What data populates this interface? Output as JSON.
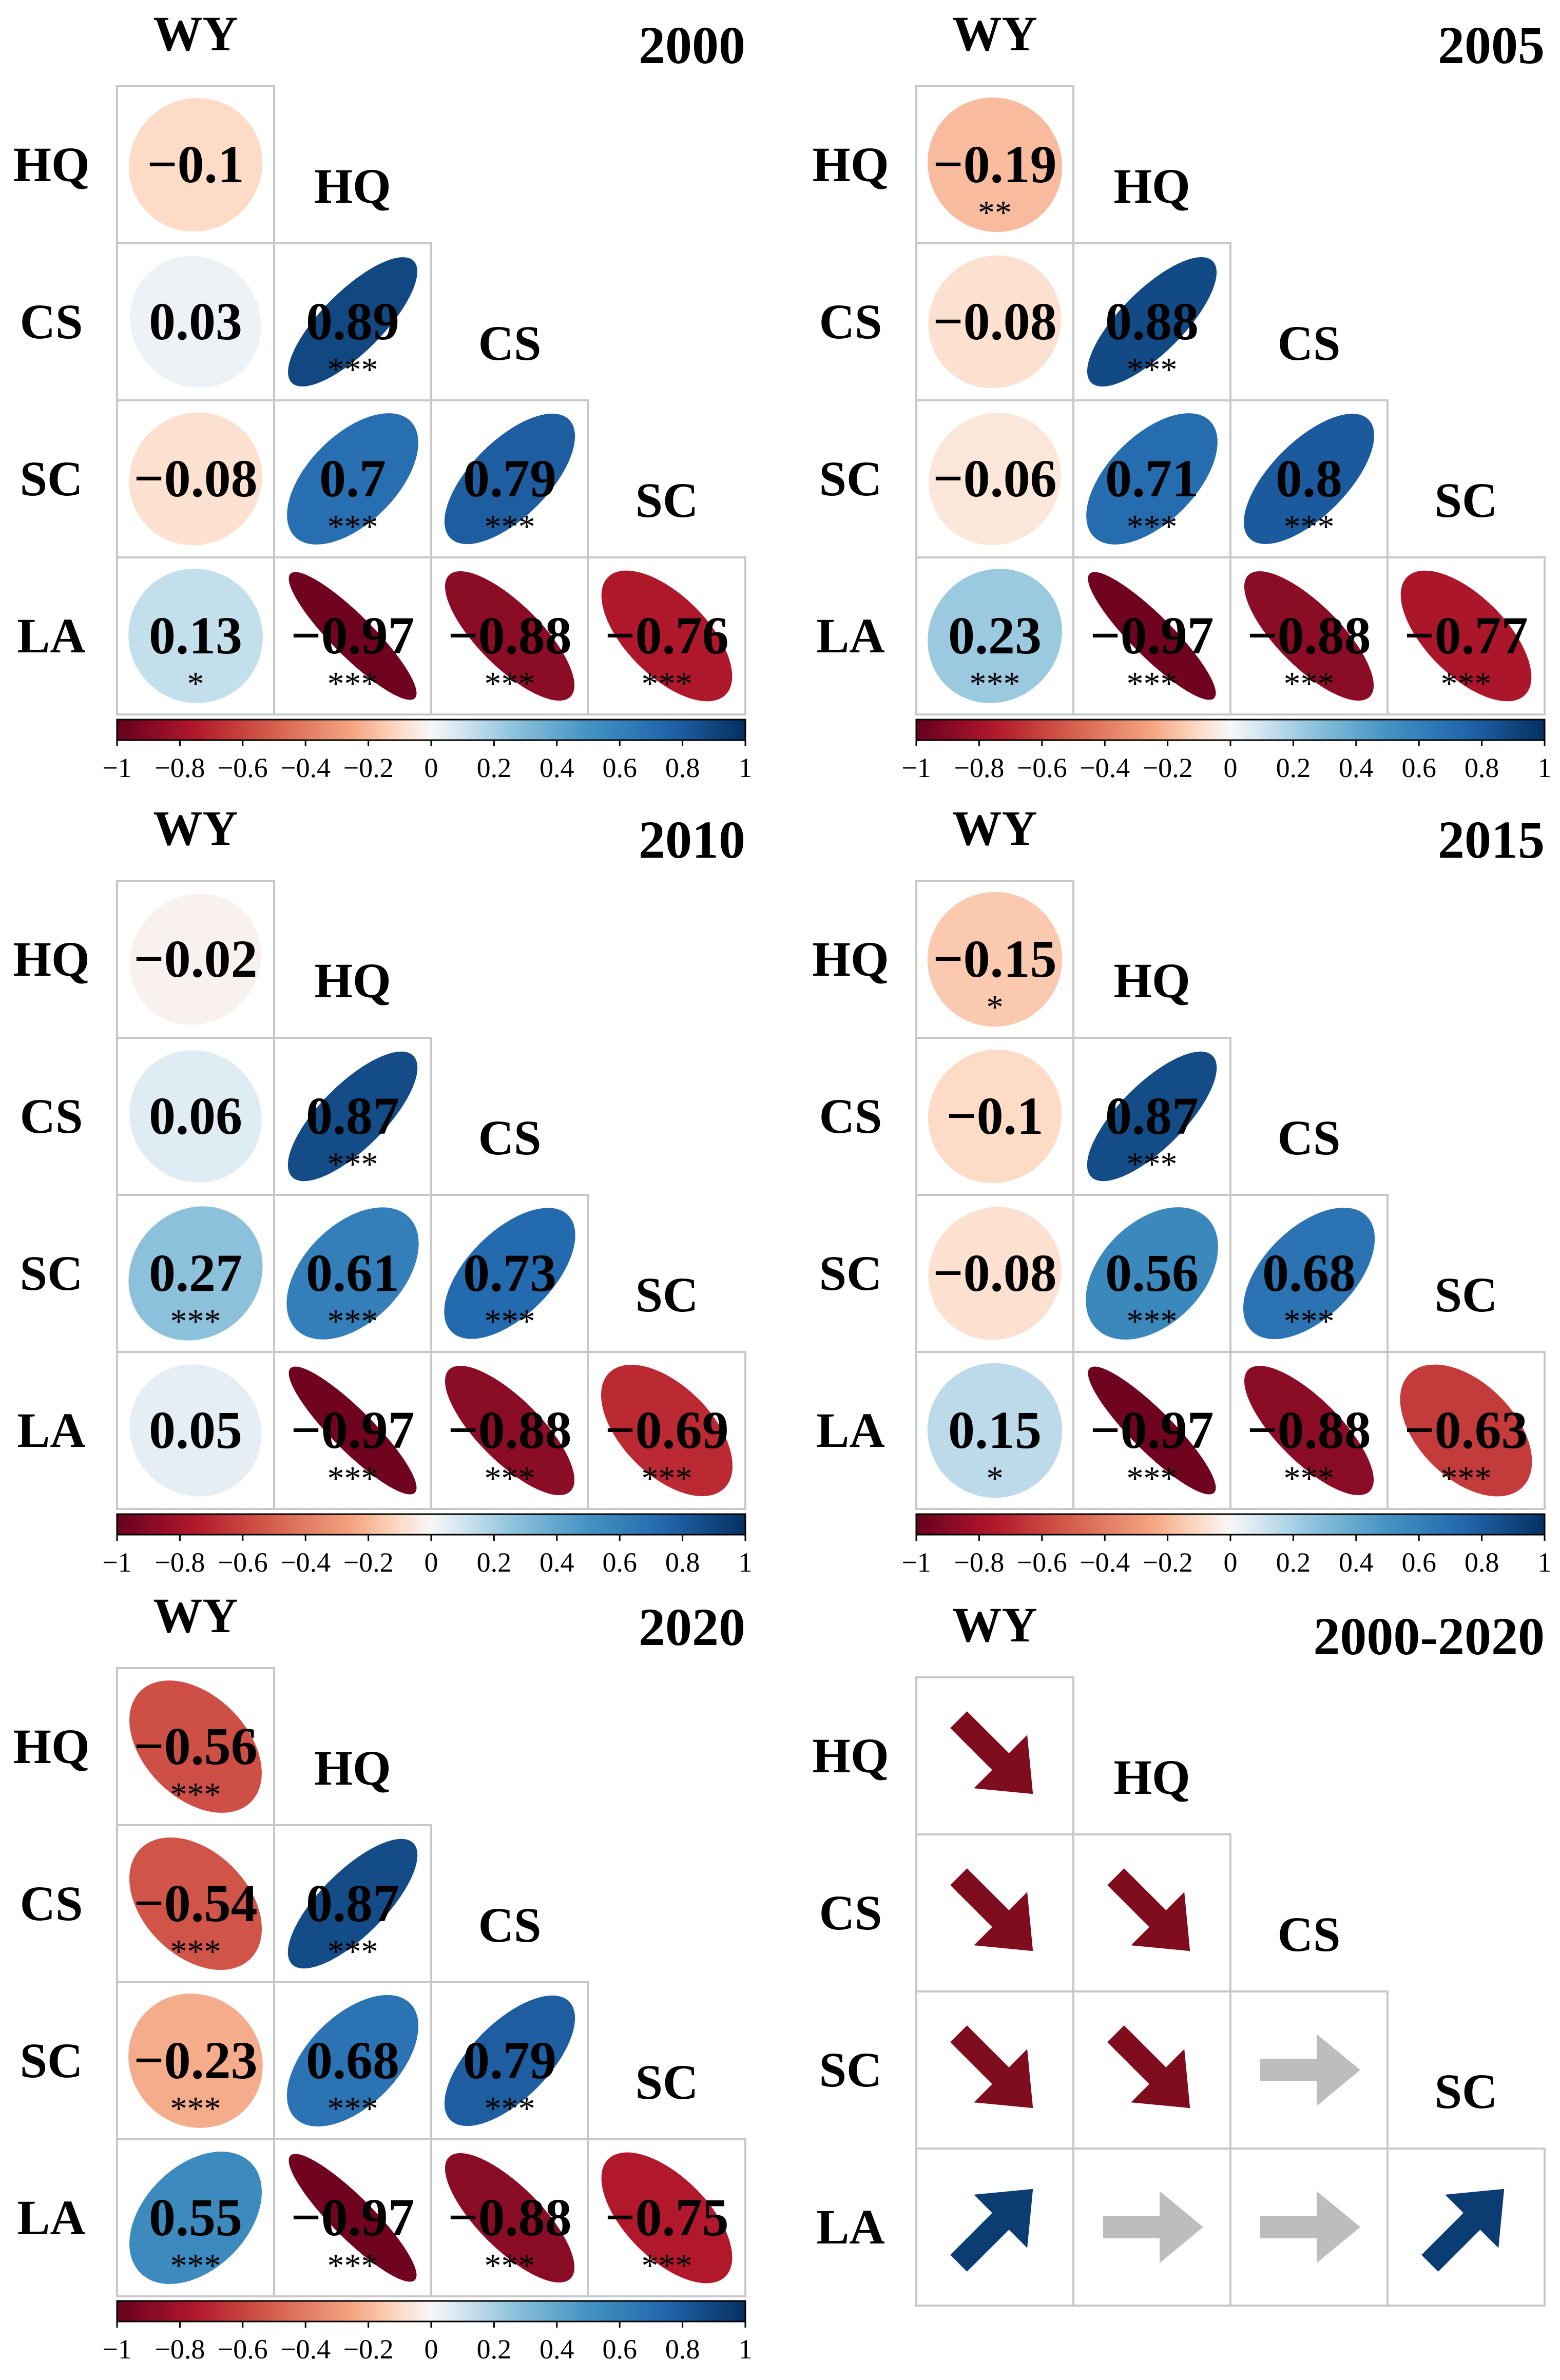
{
  "variables": [
    "WY",
    "HQ",
    "CS",
    "SC",
    "LA"
  ],
  "colorbar": {
    "ticks": [
      "−1",
      "−0.8",
      "−0.6",
      "−0.4",
      "−0.2",
      "0",
      "0.2",
      "0.4",
      "0.6",
      "0.8",
      "1"
    ],
    "tick_values": [
      -1,
      -0.8,
      -0.6,
      -0.4,
      -0.2,
      0,
      0.2,
      0.4,
      0.6,
      0.8,
      1
    ],
    "colors": [
      {
        "v": -1,
        "c": "#67001f"
      },
      {
        "v": -0.75,
        "c": "#b2182b"
      },
      {
        "v": -0.5,
        "c": "#d6604d"
      },
      {
        "v": -0.25,
        "c": "#f4a582"
      },
      {
        "v": -0.1,
        "c": "#fddbc7"
      },
      {
        "v": 0,
        "c": "#f7f7f7"
      },
      {
        "v": 0.1,
        "c": "#d1e5f0"
      },
      {
        "v": 0.25,
        "c": "#92c5de"
      },
      {
        "v": 0.5,
        "c": "#4393c3"
      },
      {
        "v": 0.75,
        "c": "#2166ac"
      },
      {
        "v": 1,
        "c": "#053061"
      }
    ]
  },
  "trend_colors": {
    "decrease": "#7f0d1e",
    "stable": "#bdbdbd",
    "increase": "#0b3d73"
  },
  "chart_data": [
    {
      "type": "correlation-matrix",
      "title": "2000",
      "pairs": [
        {
          "row": "HQ",
          "col": "WY",
          "value": -0.1,
          "label": "−0.1",
          "sig": ""
        },
        {
          "row": "CS",
          "col": "WY",
          "value": 0.03,
          "label": "0.03",
          "sig": ""
        },
        {
          "row": "CS",
          "col": "HQ",
          "value": 0.89,
          "label": "0.89",
          "sig": "***"
        },
        {
          "row": "SC",
          "col": "WY",
          "value": -0.08,
          "label": "−0.08",
          "sig": ""
        },
        {
          "row": "SC",
          "col": "HQ",
          "value": 0.7,
          "label": "0.7",
          "sig": "***"
        },
        {
          "row": "SC",
          "col": "CS",
          "value": 0.79,
          "label": "0.79",
          "sig": "***"
        },
        {
          "row": "LA",
          "col": "WY",
          "value": 0.13,
          "label": "0.13",
          "sig": "*"
        },
        {
          "row": "LA",
          "col": "HQ",
          "value": -0.97,
          "label": "−0.97",
          "sig": "***"
        },
        {
          "row": "LA",
          "col": "CS",
          "value": -0.88,
          "label": "−0.88",
          "sig": "***"
        },
        {
          "row": "LA",
          "col": "SC",
          "value": -0.76,
          "label": "−0.76",
          "sig": "***"
        }
      ]
    },
    {
      "type": "correlation-matrix",
      "title": "2005",
      "pairs": [
        {
          "row": "HQ",
          "col": "WY",
          "value": -0.19,
          "label": "−0.19",
          "sig": "**"
        },
        {
          "row": "CS",
          "col": "WY",
          "value": -0.08,
          "label": "−0.08",
          "sig": ""
        },
        {
          "row": "CS",
          "col": "HQ",
          "value": 0.88,
          "label": "0.88",
          "sig": "***"
        },
        {
          "row": "SC",
          "col": "WY",
          "value": -0.06,
          "label": "−0.06",
          "sig": ""
        },
        {
          "row": "SC",
          "col": "HQ",
          "value": 0.71,
          "label": "0.71",
          "sig": "***"
        },
        {
          "row": "SC",
          "col": "CS",
          "value": 0.8,
          "label": "0.8",
          "sig": "***"
        },
        {
          "row": "LA",
          "col": "WY",
          "value": 0.23,
          "label": "0.23",
          "sig": "***"
        },
        {
          "row": "LA",
          "col": "HQ",
          "value": -0.97,
          "label": "−0.97",
          "sig": "***"
        },
        {
          "row": "LA",
          "col": "CS",
          "value": -0.88,
          "label": "−0.88",
          "sig": "***"
        },
        {
          "row": "LA",
          "col": "SC",
          "value": -0.77,
          "label": "−0.77",
          "sig": "***"
        }
      ]
    },
    {
      "type": "correlation-matrix",
      "title": "2010",
      "pairs": [
        {
          "row": "HQ",
          "col": "WY",
          "value": -0.02,
          "label": "−0.02",
          "sig": ""
        },
        {
          "row": "CS",
          "col": "WY",
          "value": 0.06,
          "label": "0.06",
          "sig": ""
        },
        {
          "row": "CS",
          "col": "HQ",
          "value": 0.87,
          "label": "0.87",
          "sig": "***"
        },
        {
          "row": "SC",
          "col": "WY",
          "value": 0.27,
          "label": "0.27",
          "sig": "***"
        },
        {
          "row": "SC",
          "col": "HQ",
          "value": 0.61,
          "label": "0.61",
          "sig": "***"
        },
        {
          "row": "SC",
          "col": "CS",
          "value": 0.73,
          "label": "0.73",
          "sig": "***"
        },
        {
          "row": "LA",
          "col": "WY",
          "value": 0.05,
          "label": "0.05",
          "sig": ""
        },
        {
          "row": "LA",
          "col": "HQ",
          "value": -0.97,
          "label": "−0.97",
          "sig": "***"
        },
        {
          "row": "LA",
          "col": "CS",
          "value": -0.88,
          "label": "−0.88",
          "sig": "***"
        },
        {
          "row": "LA",
          "col": "SC",
          "value": -0.69,
          "label": "−0.69",
          "sig": "***"
        }
      ]
    },
    {
      "type": "correlation-matrix",
      "title": "2015",
      "pairs": [
        {
          "row": "HQ",
          "col": "WY",
          "value": -0.15,
          "label": "−0.15",
          "sig": "*"
        },
        {
          "row": "CS",
          "col": "WY",
          "value": -0.1,
          "label": "−0.1",
          "sig": ""
        },
        {
          "row": "CS",
          "col": "HQ",
          "value": 0.87,
          "label": "0.87",
          "sig": "***"
        },
        {
          "row": "SC",
          "col": "WY",
          "value": -0.08,
          "label": "−0.08",
          "sig": ""
        },
        {
          "row": "SC",
          "col": "HQ",
          "value": 0.56,
          "label": "0.56",
          "sig": "***"
        },
        {
          "row": "SC",
          "col": "CS",
          "value": 0.68,
          "label": "0.68",
          "sig": "***"
        },
        {
          "row": "LA",
          "col": "WY",
          "value": 0.15,
          "label": "0.15",
          "sig": "*"
        },
        {
          "row": "LA",
          "col": "HQ",
          "value": -0.97,
          "label": "−0.97",
          "sig": "***"
        },
        {
          "row": "LA",
          "col": "CS",
          "value": -0.88,
          "label": "−0.88",
          "sig": "***"
        },
        {
          "row": "LA",
          "col": "SC",
          "value": -0.63,
          "label": "−0.63",
          "sig": "***"
        }
      ]
    },
    {
      "type": "correlation-matrix",
      "title": "2020",
      "pairs": [
        {
          "row": "HQ",
          "col": "WY",
          "value": -0.56,
          "label": "−0.56",
          "sig": "***"
        },
        {
          "row": "CS",
          "col": "WY",
          "value": -0.54,
          "label": "−0.54",
          "sig": "***"
        },
        {
          "row": "CS",
          "col": "HQ",
          "value": 0.87,
          "label": "0.87",
          "sig": "***"
        },
        {
          "row": "SC",
          "col": "WY",
          "value": -0.23,
          "label": "−0.23",
          "sig": "***"
        },
        {
          "row": "SC",
          "col": "HQ",
          "value": 0.68,
          "label": "0.68",
          "sig": "***"
        },
        {
          "row": "SC",
          "col": "CS",
          "value": 0.79,
          "label": "0.79",
          "sig": "***"
        },
        {
          "row": "LA",
          "col": "WY",
          "value": 0.55,
          "label": "0.55",
          "sig": "***"
        },
        {
          "row": "LA",
          "col": "HQ",
          "value": -0.97,
          "label": "−0.97",
          "sig": "***"
        },
        {
          "row": "LA",
          "col": "CS",
          "value": -0.88,
          "label": "−0.88",
          "sig": "***"
        },
        {
          "row": "LA",
          "col": "SC",
          "value": -0.75,
          "label": "−0.75",
          "sig": "***"
        }
      ]
    },
    {
      "type": "trend-matrix",
      "title": "2000-2020",
      "pairs": [
        {
          "row": "HQ",
          "col": "WY",
          "trend": "decrease"
        },
        {
          "row": "CS",
          "col": "WY",
          "trend": "decrease"
        },
        {
          "row": "CS",
          "col": "HQ",
          "trend": "decrease"
        },
        {
          "row": "SC",
          "col": "WY",
          "trend": "decrease"
        },
        {
          "row": "SC",
          "col": "HQ",
          "trend": "decrease"
        },
        {
          "row": "SC",
          "col": "CS",
          "trend": "stable"
        },
        {
          "row": "LA",
          "col": "WY",
          "trend": "increase"
        },
        {
          "row": "LA",
          "col": "HQ",
          "trend": "stable"
        },
        {
          "row": "LA",
          "col": "CS",
          "trend": "stable"
        },
        {
          "row": "LA",
          "col": "SC",
          "trend": "increase"
        }
      ]
    }
  ]
}
